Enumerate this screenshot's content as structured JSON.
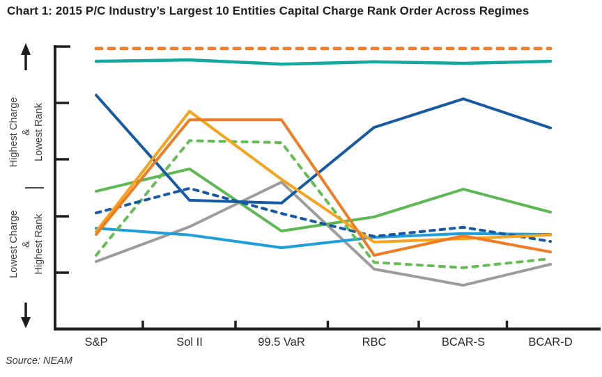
{
  "page": {
    "title": "Chart 1: 2015 P/C Industry’s Largest 10 Entities Capital Charge Rank Order Across Regimes",
    "source": "Source: NEAM"
  },
  "chart_data": {
    "type": "line",
    "title": "Chart 1: 2015 P/C Industry’s Largest 10 Entities Capital Charge Rank Order Across Regimes",
    "categories": [
      "S&P",
      "Sol II",
      "99.5 VaR",
      "RBC",
      "BCAR-S",
      "BCAR-D"
    ],
    "x_axis": {
      "ticks_at_category_boundaries": true
    },
    "y_axis": {
      "type": "qualitative",
      "unit": "percent of plot height measured from top",
      "note": "0 = highest capital charge / lowest rank (top of chart); 100 = lowest capital charge / highest rank (bottom of chart)",
      "top_label": [
        "Highest Charge",
        "&",
        "Lowest Rank"
      ],
      "bottom_label": [
        "Lowest Charge",
        "&",
        "Highest Rank"
      ]
    },
    "grid": false,
    "legend": "none",
    "series": [
      {
        "id": "gray",
        "style": "solid",
        "color": "#9C9C9A",
        "values": [
          76.1,
          63.8,
          48.0,
          78.8,
          84.5,
          77.1
        ]
      },
      {
        "id": "light-blue",
        "style": "solid",
        "color": "#1E9FDC",
        "values": [
          64.3,
          66.7,
          71.2,
          67.5,
          66.2,
          66.5
        ]
      },
      {
        "id": "green-dashed",
        "style": "dashed",
        "color": "#62BD52",
        "values": [
          73.9,
          33.3,
          34.0,
          76.4,
          78.3,
          75.1
        ]
      },
      {
        "id": "green",
        "style": "solid",
        "color": "#5CB851",
        "values": [
          51.2,
          43.3,
          65.3,
          60.3,
          50.5,
          58.6
        ]
      },
      {
        "id": "dark-blue-dashed",
        "style": "dashed",
        "color": "#1659A5",
        "values": [
          58.9,
          50.2,
          59.1,
          67.2,
          64.0,
          69.0
        ]
      },
      {
        "id": "dark-blue",
        "style": "solid",
        "color": "#1659A5",
        "values": [
          17.2,
          54.4,
          55.4,
          28.6,
          18.5,
          28.8
        ]
      },
      {
        "id": "yellow",
        "style": "solid",
        "color": "#F6A21D",
        "values": [
          65.5,
          22.9,
          47.0,
          69.2,
          68.0,
          66.7
        ]
      },
      {
        "id": "orange",
        "style": "solid",
        "color": "#EF7B22",
        "values": [
          66.5,
          25.9,
          25.9,
          73.9,
          67.0,
          72.7
        ]
      },
      {
        "id": "teal",
        "style": "solid",
        "color": "#14A8A0",
        "values": [
          5.2,
          4.7,
          6.2,
          5.4,
          5.9,
          5.2
        ]
      },
      {
        "id": "orange-dashed",
        "style": "dashed",
        "color": "#F07E26",
        "values": [
          0.7,
          0.7,
          0.7,
          0.7,
          0.7,
          0.7
        ]
      }
    ]
  },
  "colors": {
    "axis": "#1E1E1E",
    "title_text": "#231F20",
    "axis_annotation_text": "#414141",
    "category_label_text": "#2A2A2A",
    "source_text": "#34343E",
    "background": "#FFFFFF"
  }
}
